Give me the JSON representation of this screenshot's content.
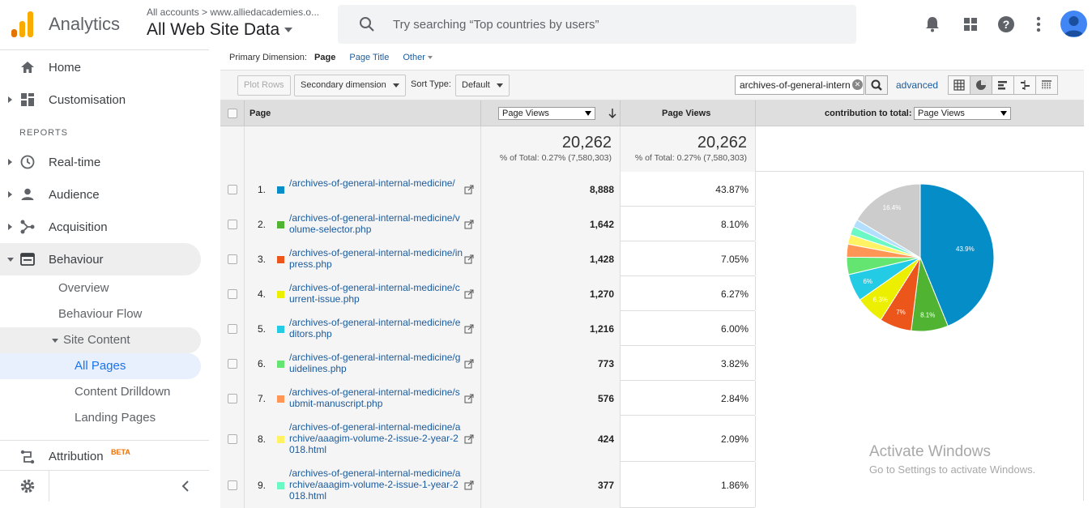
{
  "header": {
    "brand": "Analytics",
    "account_crumb": "All accounts > www.alliedacademies.o...",
    "view_name": "All Web Site Data",
    "search_placeholder": "Try searching “Top countries by users”"
  },
  "sidebar": {
    "home": "Home",
    "customisation": "Customisation",
    "reports_heading": "REPORTS",
    "realtime": "Real-time",
    "audience": "Audience",
    "acquisition": "Acquisition",
    "behaviour": "Behaviour",
    "overview": "Overview",
    "behaviour_flow": "Behaviour Flow",
    "site_content": "Site Content",
    "all_pages": "All Pages",
    "content_drilldown": "Content Drilldown",
    "landing_pages": "Landing Pages",
    "attribution": "Attribution",
    "attribution_badge": "BETA"
  },
  "toolbar": {
    "primary_dimension_label": "Primary Dimension:",
    "primary_active": "Page",
    "primary_page_title": "Page Title",
    "primary_other": "Other",
    "plot_rows": "Plot Rows",
    "secondary_dimension": "Secondary dimension",
    "sort_type_label": "Sort Type:",
    "sort_type_value": "Default",
    "filter_value": "archives-of-general-intern",
    "advanced": "advanced"
  },
  "table": {
    "col_page": "Page",
    "col_metric_select": "Page Views",
    "col_page_views": "Page Views",
    "contribution_label": "contribution to total:",
    "contribution_select": "Page Views",
    "totals": {
      "value1": "20,262",
      "pct1": "% of Total: 0.27% (7,580,303)",
      "value2": "20,262",
      "pct2": "% of Total: 0.27% (7,580,303)"
    },
    "rows": [
      {
        "num": "1.",
        "page": "/archives-of-general-internal-medicine/",
        "views": "8,888",
        "pct": "43.87%"
      },
      {
        "num": "2.",
        "page": "/archives-of-general-internal-medicine/volume-selector.php",
        "views": "1,642",
        "pct": "8.10%"
      },
      {
        "num": "3.",
        "page": "/archives-of-general-internal-medicine/inpress.php",
        "views": "1,428",
        "pct": "7.05%"
      },
      {
        "num": "4.",
        "page": "/archives-of-general-internal-medicine/current-issue.php",
        "views": "1,270",
        "pct": "6.27%"
      },
      {
        "num": "5.",
        "page": "/archives-of-general-internal-medicine/editors.php",
        "views": "1,216",
        "pct": "6.00%"
      },
      {
        "num": "6.",
        "page": "/archives-of-general-internal-medicine/guidelines.php",
        "views": "773",
        "pct": "3.82%"
      },
      {
        "num": "7.",
        "page": "/archives-of-general-internal-medicine/submit-manuscript.php",
        "views": "576",
        "pct": "2.84%"
      },
      {
        "num": "8.",
        "page": "/archives-of-general-internal-medicine/archive/aaagim-volume-2-issue-2-year-2018.html",
        "views": "424",
        "pct": "2.09%"
      },
      {
        "num": "9.",
        "page": "/archives-of-general-internal-medicine/archive/aaagim-volume-2-issue-1-year-2018.html",
        "views": "377",
        "pct": "1.86%"
      }
    ]
  },
  "colors": {
    "row_swatches": [
      "#058dc7",
      "#50b432",
      "#ed561b",
      "#edef00",
      "#24cbe5",
      "#64e572",
      "#ff9655",
      "#fff263",
      "#6af9c4"
    ],
    "pie_other": "#b2deff",
    "pie_remaining": "#cccccc",
    "accent_blue": "#1a73e8"
  },
  "chart_data": {
    "type": "pie",
    "slices": [
      {
        "label": "1",
        "value": 43.87,
        "color": "#058dc7",
        "text": "43.9%"
      },
      {
        "label": "2",
        "value": 8.1,
        "color": "#50b432",
        "text": "8.1%"
      },
      {
        "label": "3",
        "value": 7.05,
        "color": "#ed561b",
        "text": "7%"
      },
      {
        "label": "4",
        "value": 6.27,
        "color": "#edef00",
        "text": "6.3%"
      },
      {
        "label": "5",
        "value": 6.0,
        "color": "#24cbe5",
        "text": "6%"
      },
      {
        "label": "6",
        "value": 3.82,
        "color": "#64e572",
        "text": ""
      },
      {
        "label": "7",
        "value": 2.84,
        "color": "#ff9655",
        "text": ""
      },
      {
        "label": "8",
        "value": 2.09,
        "color": "#fff263",
        "text": ""
      },
      {
        "label": "9",
        "value": 1.86,
        "color": "#6af9c4",
        "text": ""
      },
      {
        "label": "10",
        "value": 1.7,
        "color": "#b2deff",
        "text": ""
      },
      {
        "label": "other",
        "value": 16.4,
        "color": "#cccccc",
        "text": "16.4%"
      }
    ]
  },
  "watermark": {
    "line1": "Activate Windows",
    "line2": "Go to Settings to activate Windows."
  }
}
